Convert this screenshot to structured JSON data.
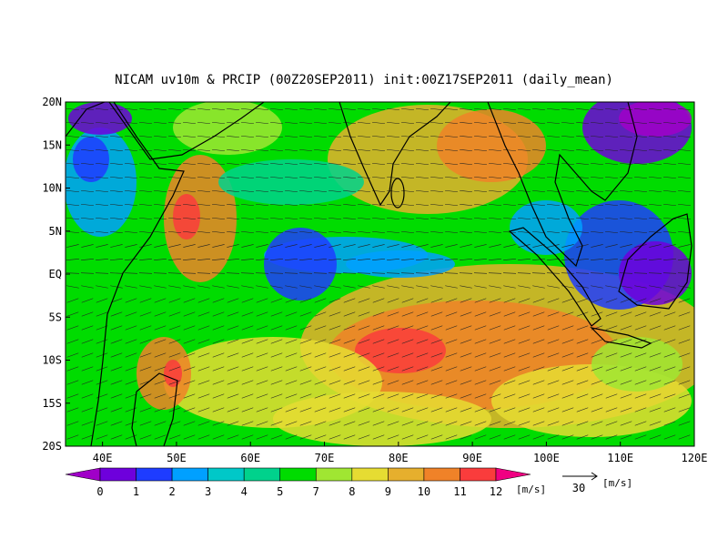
{
  "map": {
    "title": "NICAM uv10m & PRCIP (00Z20SEP2011) init:00Z17SEP2011 (daily_mean)",
    "xlim": [
      35,
      120
    ],
    "ylim": [
      -20,
      20
    ],
    "xticks": [
      {
        "value": 40,
        "label": "40E"
      },
      {
        "value": 50,
        "label": "50E"
      },
      {
        "value": 60,
        "label": "60E"
      },
      {
        "value": 70,
        "label": "70E"
      },
      {
        "value": 80,
        "label": "80E"
      },
      {
        "value": 90,
        "label": "90E"
      },
      {
        "value": 100,
        "label": "100E"
      },
      {
        "value": 110,
        "label": "110E"
      },
      {
        "value": 120,
        "label": "120E"
      }
    ],
    "yticks": [
      {
        "value": 20,
        "label": "20N"
      },
      {
        "value": 15,
        "label": "15N"
      },
      {
        "value": 10,
        "label": "10N"
      },
      {
        "value": 5,
        "label": "5N"
      },
      {
        "value": 0,
        "label": "EQ"
      },
      {
        "value": -5,
        "label": "5S"
      },
      {
        "value": -10,
        "label": "10S"
      },
      {
        "value": -15,
        "label": "15S"
      },
      {
        "value": -20,
        "label": "20S"
      }
    ],
    "colorbar": {
      "levels": [
        0,
        1,
        2,
        3,
        4,
        5,
        7,
        8,
        9,
        10,
        11,
        12
      ],
      "colors": [
        "#a000c8",
        "#6e00dc",
        "#1e3cff",
        "#00a0ff",
        "#00c8c8",
        "#00d28c",
        "#00dc00",
        "#a0e632",
        "#e6dc32",
        "#e6af2d",
        "#f08228",
        "#fa3c3c",
        "#f00082"
      ],
      "unit": "[m/s]"
    },
    "reference_vector": {
      "value": 30,
      "unit": "[m/s]"
    }
  }
}
